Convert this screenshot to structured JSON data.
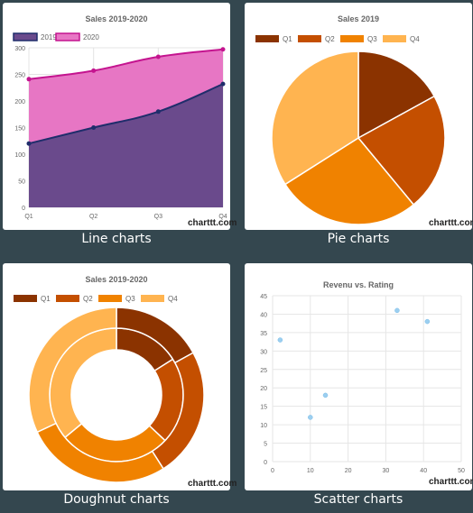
{
  "captions": {
    "line": "Line charts",
    "pie": "Pie charts",
    "doughnut": "Doughnut charts",
    "scatter": "Scatter charts"
  },
  "credit": "charttt.com",
  "chart_data": [
    {
      "type": "area",
      "title": "Sales 2019-2020",
      "categories": [
        "Q1",
        "Q2",
        "Q3",
        "Q4"
      ],
      "ylim": [
        0,
        300
      ],
      "yticks": [
        0,
        50,
        100,
        150,
        200,
        250,
        300
      ],
      "series": [
        {
          "name": "2019",
          "values": [
            120,
            150,
            180,
            232
          ],
          "color": "#1f2d6b",
          "fill": "#6a4a8c"
        },
        {
          "name": "2020",
          "values": [
            241,
            257,
            283,
            297
          ],
          "color": "#c4148f",
          "fill": "#e776c4"
        }
      ],
      "legend": "top-left"
    },
    {
      "type": "pie",
      "title": "Sales 2019",
      "labels": [
        "Q1",
        "Q2",
        "Q3",
        "Q4"
      ],
      "values": [
        17,
        22,
        27,
        34
      ],
      "colors": [
        "#8b3300",
        "#c44f00",
        "#f08200",
        "#ffb450"
      ],
      "legend": "top-left"
    },
    {
      "type": "doughnut",
      "title": "Sales 2019-2020",
      "labels": [
        "Q1",
        "Q2",
        "Q3",
        "Q4"
      ],
      "series": [
        {
          "values": [
            16,
            21,
            27,
            36
          ]
        },
        {
          "values": [
            17,
            24,
            27,
            32
          ]
        }
      ],
      "colors": [
        "#8b3300",
        "#c44f00",
        "#f08200",
        "#ffb450"
      ],
      "legend": "top-left"
    },
    {
      "type": "scatter",
      "title": "Revenu vs. Rating",
      "xlim": [
        0,
        50
      ],
      "ylim": [
        0,
        45
      ],
      "xticks": [
        0,
        10,
        20,
        30,
        40,
        50
      ],
      "yticks": [
        0,
        5,
        10,
        15,
        20,
        25,
        30,
        35,
        40,
        45
      ],
      "points": [
        {
          "x": 2,
          "y": 33
        },
        {
          "x": 10,
          "y": 12
        },
        {
          "x": 14,
          "y": 18
        },
        {
          "x": 33,
          "y": 41
        },
        {
          "x": 41,
          "y": 38
        }
      ],
      "color": "#9ccff0"
    }
  ]
}
